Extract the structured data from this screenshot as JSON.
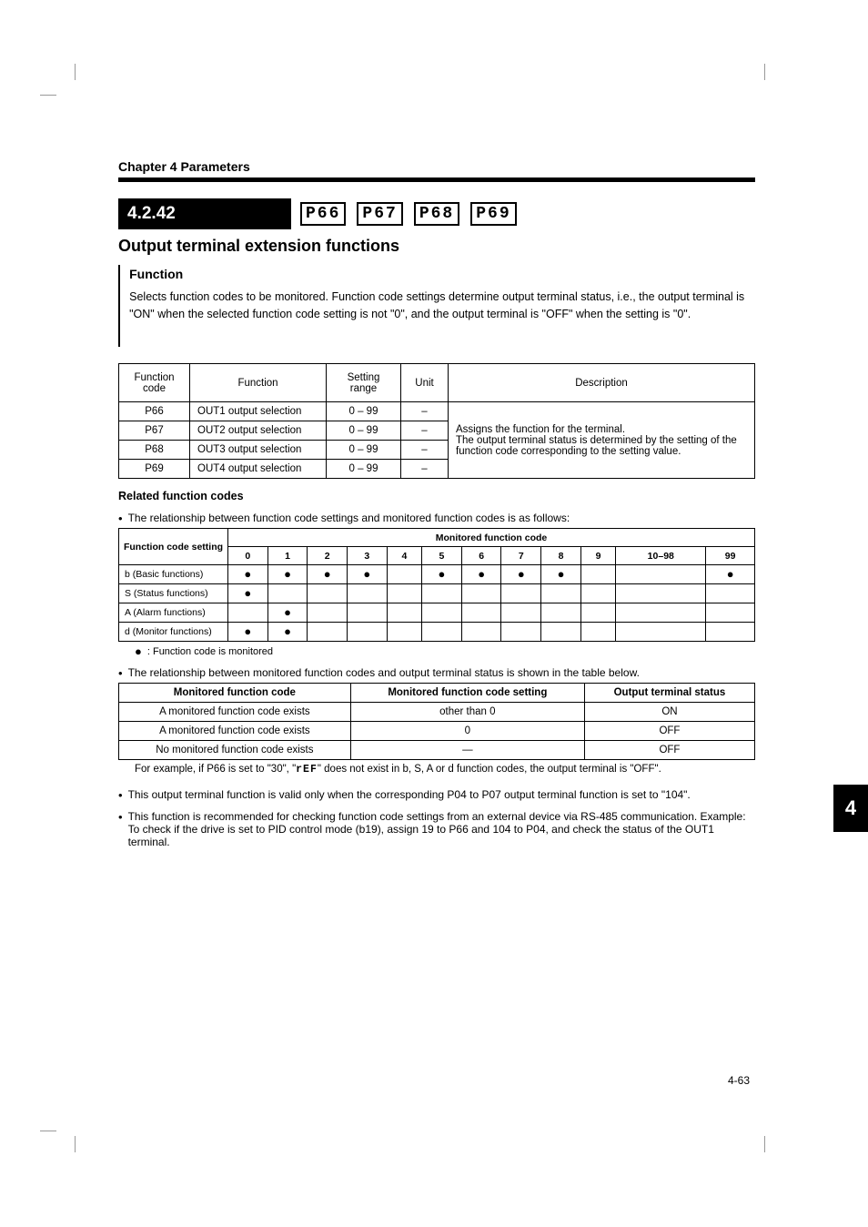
{
  "chapter_title": "Chapter 4 Parameters",
  "section": {
    "label": "4.2.42",
    "title": "Output terminal extension functions",
    "codes": [
      "P66",
      "P67",
      "P68",
      "P69"
    ]
  },
  "function_block": {
    "heading": "Function",
    "body": "Selects function codes to be monitored. Function code settings determine output terminal status, i.e., the output terminal is \"ON\" when the selected function code setting is not \"0\", and the output terminal is \"OFF\" when the setting is \"0\"."
  },
  "main_table": {
    "headers": [
      "Function code",
      "Function",
      "Setting range",
      "Unit",
      "Description"
    ],
    "rows": [
      {
        "code": "P66",
        "func": "OUT1 output selection",
        "range": "0 – 99",
        "unit": "–",
        "desc_rowspan": 4,
        "desc": "Assigns the function for the terminal.\nThe output terminal status is determined by the setting of the function code corresponding to the setting value."
      },
      {
        "code": "P67",
        "func": "OUT2 output selection",
        "range": "0 – 99",
        "unit": "–"
      },
      {
        "code": "P68",
        "func": "OUT3 output selection",
        "range": "0 – 99",
        "unit": "–"
      },
      {
        "code": "P69",
        "func": "OUT4 output selection",
        "range": "0 – 99",
        "unit": "–"
      }
    ]
  },
  "related_heading": "Related function codes",
  "grid_bullet": "The relationship between function code settings and monitored function codes is as follows:",
  "grid": {
    "top_header": [
      "Function code setting",
      "Monitored function code"
    ],
    "cols": [
      "0",
      "1",
      "2",
      "3",
      "4",
      "5",
      "6",
      "7",
      "8",
      "9",
      "10–98",
      "99"
    ],
    "rows": [
      {
        "label": "b (Basic functions)",
        "dots": [
          true,
          true,
          true,
          true,
          false,
          true,
          true,
          true,
          true,
          false,
          false,
          true
        ]
      },
      {
        "label": "S (Status functions)",
        "dots": [
          true,
          false,
          false,
          false,
          false,
          false,
          false,
          false,
          false,
          false,
          false,
          false
        ]
      },
      {
        "label": "A (Alarm functions)",
        "dots": [
          false,
          true,
          false,
          false,
          false,
          false,
          false,
          false,
          false,
          false,
          false,
          false
        ]
      },
      {
        "label": "d (Monitor functions)",
        "dots": [
          true,
          true,
          false,
          false,
          false,
          false,
          false,
          false,
          false,
          false,
          false,
          false
        ]
      }
    ],
    "note": ": Function code is monitored"
  },
  "monitor_bullet": "The relationship between monitored function codes and output terminal status is shown in the table below.",
  "monitor_table": {
    "headers": [
      "Monitored function code",
      "Monitored function code setting",
      "Output terminal status"
    ],
    "rows": [
      [
        "A monitored function code exists",
        "other than 0",
        "ON"
      ],
      [
        "A monitored function code exists",
        "0",
        "OFF"
      ],
      [
        "No monitored function code exists",
        "—",
        "OFF"
      ]
    ],
    "note_prefix": "For example, if P66 is set to \"30\", \"",
    "note_mono": "rEF",
    "note_suffix": "\" does not exist in b, S, A or d function codes, the output terminal is \"OFF\"."
  },
  "trailing_bullets": [
    "This output terminal function is valid only when the corresponding P04 to P07 output terminal function is set to \"104\".",
    "This function is recommended for checking function code settings from an external device via RS-485 communication. Example: To check if the drive is set to PID control mode (b19), assign 19 to P66 and 104 to P04, and check the status of the OUT1 terminal."
  ],
  "side_tab": "4",
  "page_number": "4-63"
}
